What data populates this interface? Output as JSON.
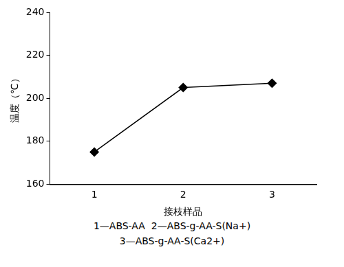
{
  "chart_data": {
    "type": "line",
    "categories": [
      "1",
      "2",
      "3"
    ],
    "values": [
      175,
      205,
      207
    ],
    "color": "#000000",
    "marker": "diamond",
    "line_style": "solid",
    "ylim": [
      160,
      240
    ],
    "yticks": [
      160,
      180,
      200,
      220,
      240
    ],
    "grid": false,
    "x_label": "接枝样品",
    "y_label": "温度（℃）",
    "annotations": [
      "1—ABS-AA  2—ABS-g-AA-S(Na+)",
      "3—ABS-g-AA-S(Ca2+)"
    ]
  }
}
